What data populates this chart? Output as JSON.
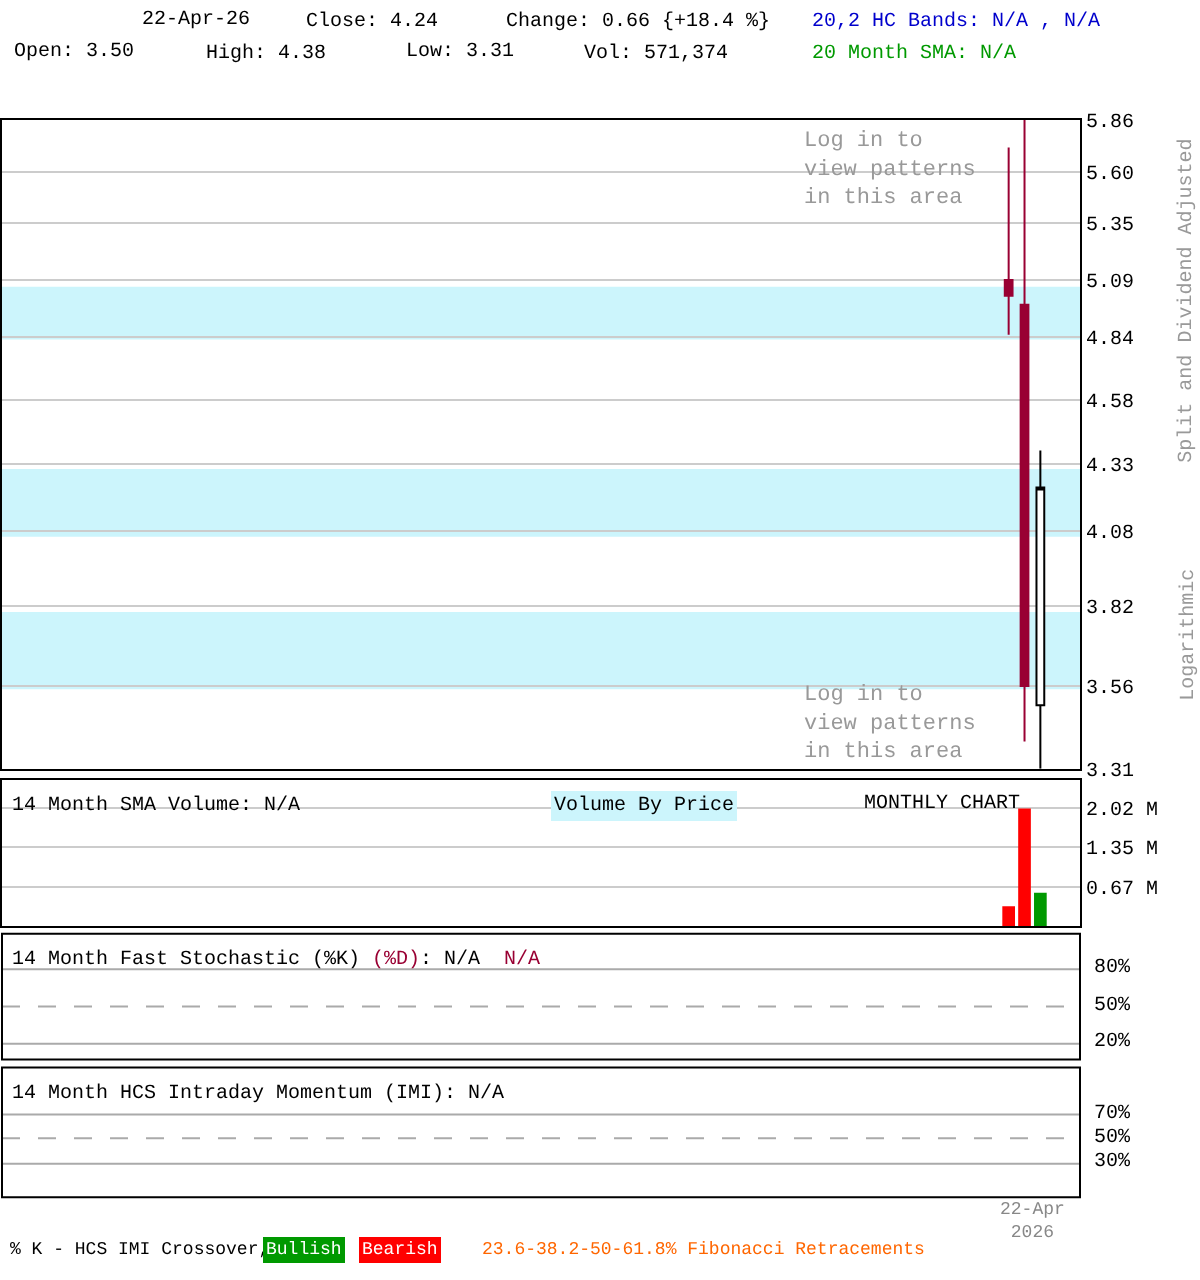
{
  "chart_data": [
    {
      "type": "candlestick",
      "categories": [
        null,
        null,
        null
      ],
      "ohlc": [
        [
          5.09,
          5.72,
          4.85,
          5.02
        ],
        [
          4.98,
          5.86,
          3.39,
          3.56
        ],
        [
          3.5,
          4.38,
          3.31,
          4.24
        ]
      ],
      "colors": [
        "#990033",
        "#990033",
        "#ffffff"
      ],
      "log": "y",
      "ylim": [
        3.31,
        5.86
      ],
      "yticks": [
        5.86,
        {
          "value": 5.6,
          "label": "5.60"
        },
        5.35,
        5.09,
        4.84,
        4.58,
        4.33,
        4.08,
        3.82,
        3.56,
        3.31
      ],
      "ylabel": "Split and Dividend Adjusted",
      "bands": [
        {
          "axis": "y",
          "from": 4.83,
          "to": 5.06,
          "color": "#ccf5fc"
        },
        {
          "axis": "y",
          "from": 4.06,
          "to": 4.31,
          "color": "#ccf5fc"
        },
        {
          "axis": "y",
          "from": 3.55,
          "to": 3.8,
          "color": "#ccf5fc"
        }
      ],
      "annotations": [
        "22-Apr-26",
        "Close: 4.24",
        "Change: 0.66 {+18.4 %}",
        "Open: 3.50",
        "High: 4.38",
        "Low: 3.31",
        "Vol: 571,374",
        "20,2 HC Bands: N/A , N/A",
        "20 Month SMA: N/A",
        "Logarithmic",
        "Log in to view patterns in this area",
        "Log in to view patterns in this area"
      ],
      "grid": "y",
      "tick_labels": "y"
    },
    {
      "type": "bar",
      "categories": [
        null,
        null,
        null
      ],
      "values": [
        0.34,
        2.02,
        0.57
      ],
      "colors": [
        "#ff0000",
        "#ff0000",
        "#009900"
      ],
      "ylim": [
        0,
        2.5
      ],
      "yticks": [
        {
          "value": 0.67,
          "label": "0.67 M"
        },
        {
          "value": 1.35,
          "label": "1.35 M"
        },
        {
          "value": 2.02,
          "label": "2.02 M"
        }
      ],
      "annotations": [
        "14 Month SMA Volume: N/A",
        "Volume By Price",
        "MONTHLY CHART"
      ],
      "grid": "y",
      "tick_labels": "y"
    },
    {
      "type": "other",
      "title": "14 Month Fast Stochastic (%K) ",
      "annotations": [
        "(%D)",
        ": N/A",
        "N/A",
        "80%",
        "50%",
        "20%"
      ]
    },
    {
      "type": "other",
      "title": "14 Month HCS Intraday Momentum (IMI): N/A",
      "annotations": [
        "70%",
        "50%",
        "30%",
        "22-Apr\n2026",
        "% K - HCS IMI Crossover,",
        "Bullish",
        "Bearish",
        "23.6-38.2-50-61.8% Fibonacci Retracements"
      ]
    }
  ]
}
